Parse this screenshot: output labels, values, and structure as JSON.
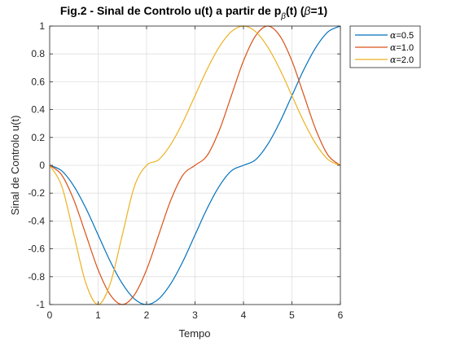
{
  "chart_data": {
    "type": "line",
    "title_main": "Fig.2 - Sinal de Controlo u(t) a partir de p",
    "title_sub": "β",
    "title_tail": "(t) (",
    "title_beta": "β",
    "title_end": "=1)",
    "xlabel": "Tempo",
    "ylabel": "Sinal de Controlo u(t)",
    "xlim": [
      0,
      6
    ],
    "ylim": [
      -1,
      1
    ],
    "xticks": [
      0,
      1,
      2,
      3,
      4,
      5,
      6
    ],
    "yticks": [
      -1,
      -0.8,
      -0.6,
      -0.4,
      -0.2,
      0,
      0.2,
      0.4,
      0.6,
      0.8,
      1
    ],
    "grid": true,
    "legend_position": "outside-top-right",
    "series": [
      {
        "name_symbol": "α",
        "name_value": "=0.5",
        "color": "#0072BD",
        "x": [
          0,
          0.25,
          0.5,
          0.75,
          1.0,
          1.25,
          1.5,
          1.75,
          2.0,
          2.25,
          2.5,
          2.75,
          3.0,
          3.25,
          3.5,
          3.75,
          4.0,
          4.25,
          4.5,
          4.75,
          5.0,
          5.25,
          5.5,
          5.75,
          6.0
        ],
        "y": [
          0,
          -0.04,
          -0.15,
          -0.31,
          -0.5,
          -0.69,
          -0.85,
          -0.96,
          -1.0,
          -0.96,
          -0.85,
          -0.69,
          -0.5,
          -0.31,
          -0.15,
          -0.04,
          0,
          0.04,
          0.15,
          0.31,
          0.5,
          0.69,
          0.85,
          0.96,
          1.0
        ]
      },
      {
        "name_symbol": "α",
        "name_value": "=1.0",
        "color": "#D95319",
        "x": [
          0,
          0.25,
          0.5,
          0.75,
          1.0,
          1.25,
          1.5,
          1.75,
          2.0,
          2.25,
          2.5,
          2.75,
          3.0,
          3.25,
          3.5,
          3.75,
          4.0,
          4.25,
          4.5,
          4.75,
          5.0,
          5.25,
          5.5,
          5.75,
          6.0
        ],
        "y": [
          0,
          -0.07,
          -0.25,
          -0.5,
          -0.75,
          -0.93,
          -1.0,
          -0.93,
          -0.75,
          -0.5,
          -0.25,
          -0.07,
          0,
          0.07,
          0.25,
          0.5,
          0.75,
          0.93,
          1.0,
          0.93,
          0.75,
          0.5,
          0.25,
          0.07,
          0
        ]
      },
      {
        "name_symbol": "α",
        "name_value": "=2.0",
        "color": "#EDB120",
        "x": [
          0,
          0.25,
          0.5,
          0.75,
          1.0,
          1.25,
          1.5,
          1.75,
          2.0,
          2.25,
          2.5,
          2.75,
          3.0,
          3.25,
          3.5,
          3.75,
          4.0,
          4.25,
          4.5,
          4.75,
          5.0,
          5.25,
          5.5,
          5.75,
          6.0
        ],
        "y": [
          0,
          -0.15,
          -0.5,
          -0.85,
          -1.0,
          -0.85,
          -0.5,
          -0.15,
          0,
          0.04,
          0.15,
          0.31,
          0.5,
          0.69,
          0.85,
          0.96,
          1.0,
          0.96,
          0.85,
          0.69,
          0.5,
          0.31,
          0.15,
          0.04,
          0
        ]
      }
    ]
  }
}
